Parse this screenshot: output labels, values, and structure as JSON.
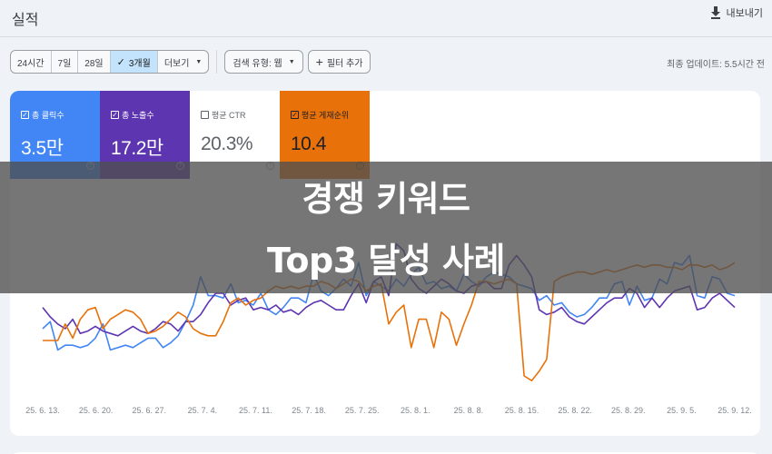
{
  "header": {
    "title": "실적",
    "export_label": "내보내기",
    "export_icon": "download-icon"
  },
  "toolbar": {
    "ranges": [
      {
        "label": "24시간",
        "active": false
      },
      {
        "label": "7일",
        "active": false
      },
      {
        "label": "28일",
        "active": false
      },
      {
        "label": "3개월",
        "active": true
      },
      {
        "label": "더보기",
        "active": false,
        "dropdown": true
      }
    ],
    "search_type_label": "검색 유형: 웹",
    "add_filter_label": "필터 추가",
    "last_updated": "최종 업데이트: 5.5시간 전"
  },
  "metrics": [
    {
      "label": "총 클릭수",
      "value": "3.5만",
      "checked": true,
      "color": "#4285f4"
    },
    {
      "label": "총 노출수",
      "value": "17.2만",
      "checked": true,
      "color": "#5e35b1"
    },
    {
      "label": "평균 CTR",
      "value": "20.3%",
      "checked": false,
      "color": "#ffffff"
    },
    {
      "label": "평균 게재순위",
      "value": "10.4",
      "checked": true,
      "color": "#e8710a"
    }
  ],
  "overlay": {
    "line1": "경쟁 키워드",
    "line2": "Top3 달성 사례"
  },
  "chart_data": {
    "type": "line",
    "title": "",
    "xlabel": "",
    "ylabel": "",
    "grid": false,
    "x_tick_labels": [
      "25. 6. 13.",
      "25. 6. 20.",
      "25. 6. 27.",
      "25. 7. 4.",
      "25. 7. 11.",
      "25. 7. 18.",
      "25. 7. 25.",
      "25. 8. 1.",
      "25. 8. 8.",
      "25. 8. 15.",
      "25. 8. 22.",
      "25. 8. 29.",
      "25. 9. 5.",
      "25. 9. 12."
    ],
    "note": "Values are relative heights (0 = plot bottom, 100 = plot top) estimated from pixel positions; axis values not displayed.",
    "series": [
      {
        "name": "총 클릭수",
        "color": "#4285f4",
        "values": [
          30,
          33,
          21,
          23,
          23,
          22,
          23,
          26,
          32,
          21,
          22,
          23,
          22,
          24,
          26,
          26,
          22,
          24,
          27,
          33,
          40,
          52,
          44,
          44,
          43,
          49,
          41,
          42,
          40,
          45,
          38,
          36,
          39,
          43,
          43,
          41,
          53,
          46,
          44,
          47,
          51,
          48,
          58,
          44,
          50,
          48,
          46,
          51,
          48,
          53,
          56,
          49,
          50,
          47,
          48,
          46,
          53,
          50,
          48,
          52,
          54,
          53,
          52,
          49,
          48,
          47,
          42,
          44,
          40,
          41,
          37,
          35,
          36,
          39,
          43,
          43,
          49,
          50,
          40,
          48,
          42,
          43,
          51,
          49,
          58,
          57,
          61,
          44,
          43,
          52,
          51,
          45,
          44
        ]
      },
      {
        "name": "총 노출수",
        "color": "#5e35b1",
        "values": [
          39,
          35,
          32,
          30,
          34,
          28,
          29,
          31,
          29,
          28,
          27,
          29,
          31,
          29,
          28,
          30,
          33,
          32,
          29,
          33,
          33,
          36,
          41,
          45,
          45,
          40,
          42,
          43,
          38,
          39,
          38,
          40,
          37,
          38,
          36,
          39,
          41,
          42,
          40,
          38,
          38,
          44,
          49,
          41,
          50,
          52,
          44,
          66,
          63,
          51,
          47,
          45,
          48,
          51,
          49,
          46,
          45,
          48,
          49,
          50,
          47,
          47,
          57,
          61,
          57,
          52,
          38,
          36,
          37,
          39,
          35,
          33,
          32,
          35,
          38,
          41,
          43,
          43,
          47,
          45,
          39,
          43,
          39,
          43,
          46,
          47,
          48,
          38,
          39,
          43,
          45,
          42,
          39
        ]
      },
      {
        "name": "평균 게재순위",
        "color": "#e8710a",
        "values": [
          25,
          25,
          25,
          32,
          26,
          34,
          38,
          39,
          30,
          34,
          36,
          38,
          37,
          34,
          28,
          29,
          31,
          34,
          37,
          35,
          30,
          28,
          27,
          27,
          33,
          41,
          43,
          40,
          42,
          43,
          46,
          48,
          47,
          48,
          47,
          48,
          48,
          50,
          49,
          47,
          49,
          51,
          50,
          46,
          48,
          49,
          32,
          37,
          40,
          22,
          34,
          34,
          22,
          37,
          34,
          23,
          32,
          40,
          50,
          50,
          49,
          50,
          51,
          49,
          10,
          8,
          12,
          17,
          50,
          52,
          53,
          54,
          54,
          53,
          54,
          55,
          54,
          55,
          56,
          57,
          56,
          57,
          57,
          56,
          56,
          55,
          57,
          57,
          56,
          57,
          55,
          56,
          58
        ]
      }
    ]
  }
}
